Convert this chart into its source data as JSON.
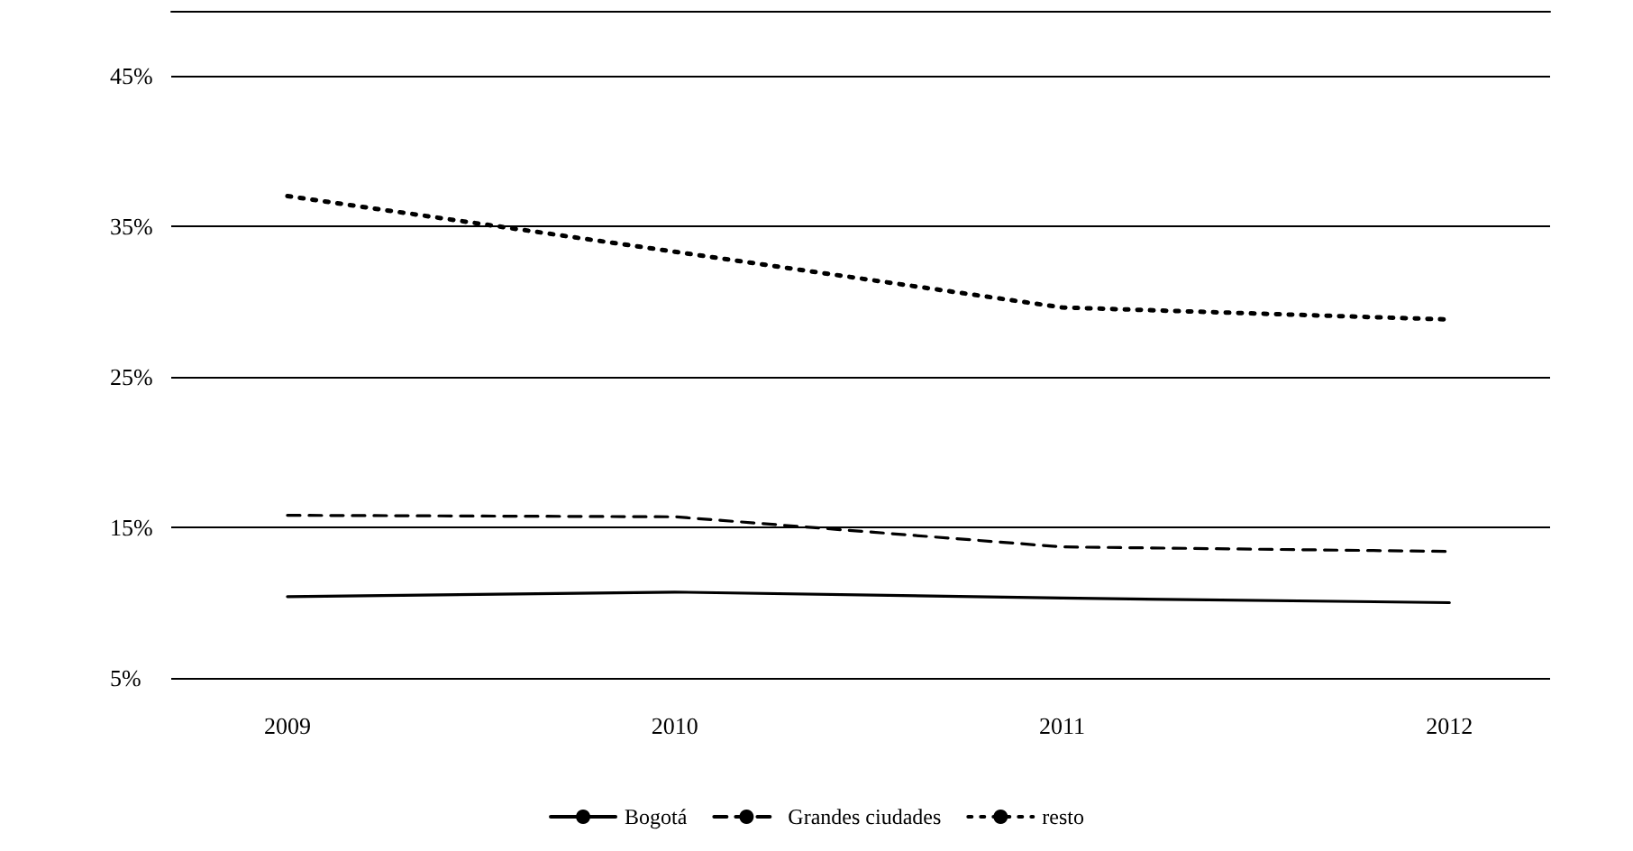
{
  "chart_data": {
    "type": "line",
    "x": [
      2009,
      2010,
      2011,
      2012
    ],
    "xlim": [
      2008.7,
      2012.26
    ],
    "xticks": [
      2009,
      2010,
      2011,
      2012
    ],
    "ylim": [
      5,
      49.3
    ],
    "yticks": [
      {
        "value": 5,
        "label": "5%"
      },
      {
        "value": 15,
        "label": "15%"
      },
      {
        "value": 25,
        "label": "25%"
      },
      {
        "value": 35,
        "label": "35%"
      },
      {
        "value": 45,
        "label": "45%"
      }
    ],
    "grid": "y",
    "legend": "bottom",
    "marker": "none",
    "series": [
      {
        "name": "Bogotá",
        "color": "#000000",
        "line_style": "solid",
        "values": [
          10.4,
          10.7,
          10.3,
          10.0
        ]
      },
      {
        "name": "Grandes ciudades",
        "color": "#000000",
        "line_style": "dashed",
        "values": [
          15.8,
          15.7,
          13.7,
          13.4
        ]
      },
      {
        "name": "resto",
        "color": "#000000",
        "line_style": "dotted",
        "values": [
          37.0,
          33.3,
          29.6,
          28.8
        ]
      }
    ]
  }
}
